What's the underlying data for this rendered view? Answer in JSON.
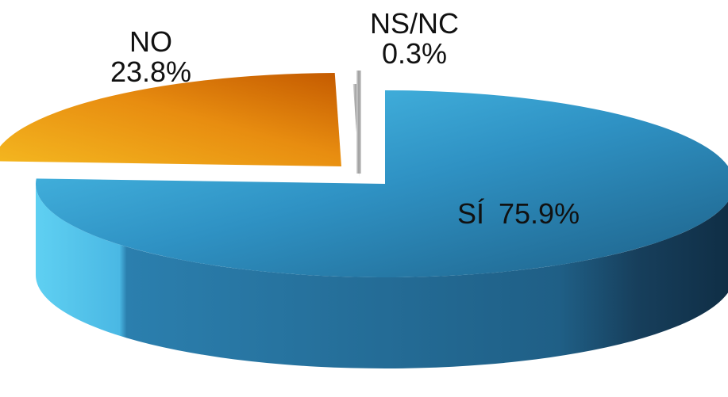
{
  "chart_data": {
    "type": "pie",
    "style": "3d-exploded",
    "slices": [
      {
        "label": "SÍ",
        "value": 75.9,
        "value_label": "75.9%",
        "color": "#2f8fc0"
      },
      {
        "label": "NO",
        "value": 23.8,
        "value_label": "23.8%",
        "color": "#e08a10"
      },
      {
        "label": "NS/NC",
        "value": 0.3,
        "value_label": "0.3%",
        "color": "#a8a8a8"
      }
    ],
    "legend": "none",
    "labels_position": "on-slice"
  }
}
